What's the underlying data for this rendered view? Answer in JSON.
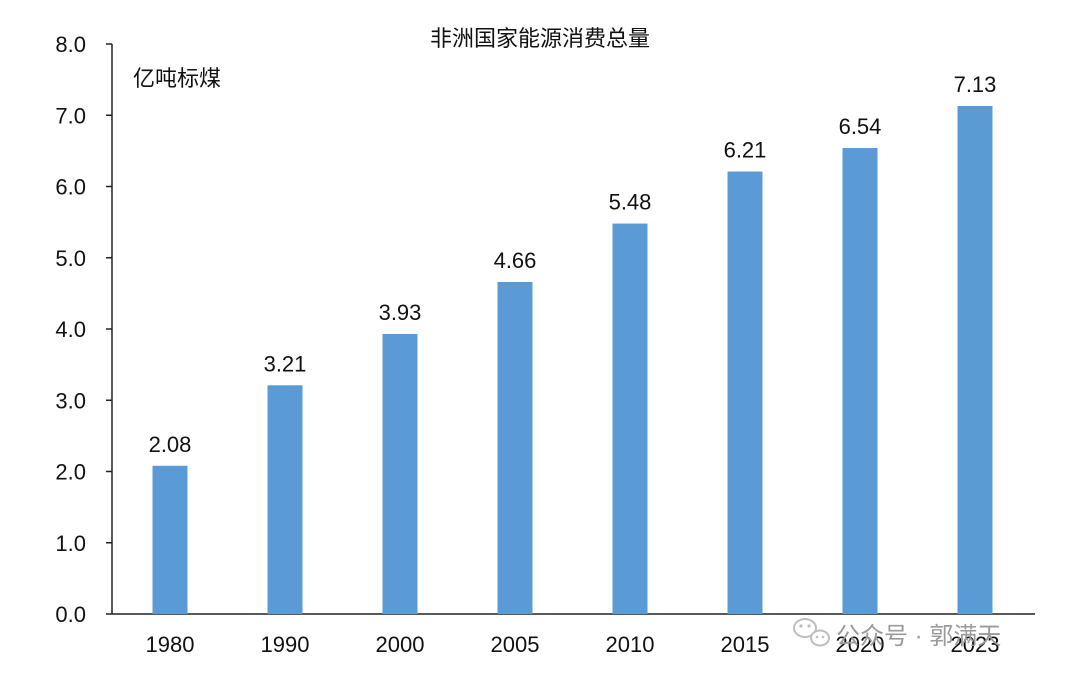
{
  "chart_data": {
    "type": "bar",
    "title": "非洲国家能源消费总量",
    "unit_label": "亿吨标煤",
    "categories": [
      "1980",
      "1990",
      "2000",
      "2005",
      "2010",
      "2015",
      "2020",
      "2023"
    ],
    "values": [
      2.08,
      3.21,
      3.93,
      4.66,
      5.48,
      6.21,
      6.54,
      7.13
    ],
    "data_labels": [
      "2.08",
      "3.21",
      "3.93",
      "4.66",
      "5.48",
      "6.21",
      "6.54",
      "7.13"
    ],
    "ylim": [
      0,
      8
    ],
    "yticks": [
      "0.0",
      "1.0",
      "2.0",
      "3.0",
      "4.0",
      "5.0",
      "6.0",
      "7.0",
      "8.0"
    ],
    "grid": false,
    "bar_color": "#5B9BD5"
  },
  "watermark": {
    "text": "公众号 · 郭满天",
    "icon": "wechat-icon"
  }
}
